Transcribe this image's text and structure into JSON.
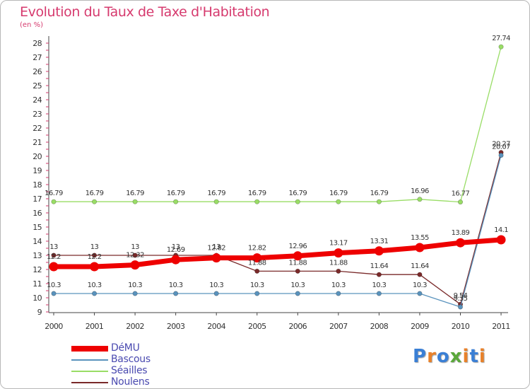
{
  "title": "Evolution du Taux de Taxe d'Habitation",
  "subtitle": "(en %)",
  "logo": {
    "text": "Proxiti",
    "letters": [
      "P",
      "r",
      "o",
      "x",
      "i",
      "t",
      "i"
    ],
    "colors": [
      "#3a7fd5",
      "#e8812a",
      "#3a7fd5",
      "#5aa83a",
      "#e8812a",
      "#3a7fd5",
      "#e8812a"
    ]
  },
  "chart_data": {
    "type": "line",
    "title": "Evolution du Taux de Taxe d'Habitation",
    "ylabel": "(en %)",
    "xlabel": "",
    "categories": [
      "2000",
      "2001",
      "2002",
      "2003",
      "2004",
      "2005",
      "2006",
      "2007",
      "2008",
      "2009",
      "2010",
      "2011"
    ],
    "ylim": [
      9,
      28
    ],
    "yticks": [
      "9",
      "10",
      "11",
      "12",
      "13",
      "14",
      "15",
      "16",
      "17",
      "18",
      "19",
      "20",
      "21",
      "22",
      "23",
      "24",
      "25",
      "26",
      "27",
      "28"
    ],
    "grid": false,
    "legend": "bottom-left",
    "series": [
      {
        "name": "DéMU",
        "color": "#ee0000",
        "values": [
          12.2,
          12.2,
          12.32,
          12.69,
          12.82,
          12.82,
          12.96,
          13.17,
          13.31,
          13.55,
          13.89,
          14.1
        ],
        "labels": [
          "12.2",
          "12.2",
          "12.32",
          "12.69",
          "12.82",
          "12.82",
          "12.96",
          "13.17",
          "13.31",
          "13.55",
          "13.89",
          "14.1"
        ]
      },
      {
        "name": "Bascous",
        "color": "#5a93bd",
        "values": [
          10.3,
          10.3,
          10.3,
          10.3,
          10.3,
          10.3,
          10.3,
          10.3,
          10.3,
          10.3,
          9.35,
          20.07
        ],
        "labels": [
          "10.3",
          "10.3",
          "10.3",
          "10.3",
          "10.3",
          "10.3",
          "10.3",
          "10.3",
          "10.3",
          "10.3",
          "9.35",
          "20.07"
        ]
      },
      {
        "name": "Séailles",
        "color": "#99dd66",
        "values": [
          16.79,
          16.79,
          16.79,
          16.79,
          16.79,
          16.79,
          16.79,
          16.79,
          16.79,
          16.96,
          16.77,
          27.74
        ],
        "labels": [
          "16.79",
          "16.79",
          "16.79",
          "16.79",
          "16.79",
          "16.79",
          "16.79",
          "16.79",
          "16.79",
          "16.96",
          "16.77",
          "27.74"
        ]
      },
      {
        "name": "Noulens",
        "color": "#7a2a2a",
        "values": [
          13,
          13,
          13,
          13,
          13,
          11.88,
          11.88,
          11.88,
          11.64,
          11.64,
          9.54,
          20.27
        ],
        "labels": [
          "13",
          "13",
          "13",
          "13",
          "13",
          "11.88",
          "11.88",
          "11.88",
          "11.64",
          "11.64",
          "9.54",
          "20.27"
        ]
      }
    ]
  }
}
